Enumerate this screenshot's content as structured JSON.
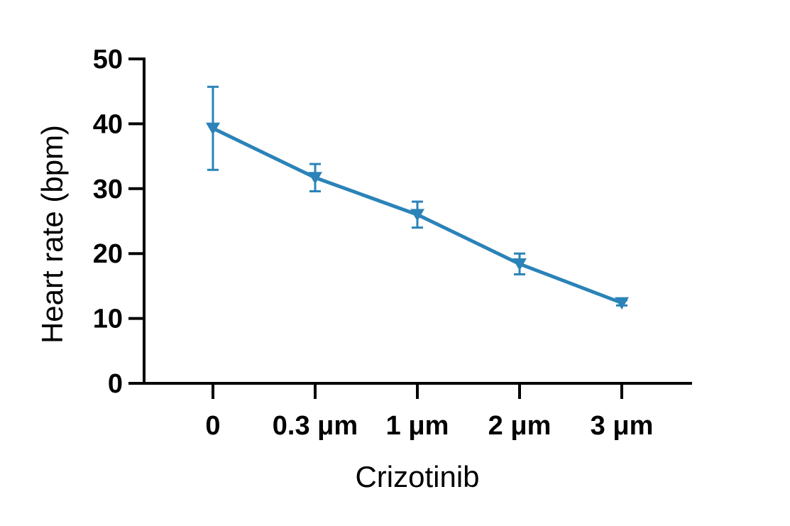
{
  "chart_data": {
    "type": "line",
    "title": "",
    "xlabel": "Crizotinib",
    "ylabel": "Heart rate (bpm)",
    "categories": [
      "0",
      "0.3 μm",
      "1 μm",
      "2 μm",
      "3 μm"
    ],
    "series": [
      {
        "values": [
          39.3,
          31.7,
          26.0,
          18.4,
          12.4
        ],
        "error": [
          6.4,
          2.1,
          2.0,
          1.6,
          0.4
        ],
        "marker": "triangle-down",
        "color": "#2b83b8"
      }
    ],
    "ylim": [
      0,
      50
    ],
    "yticks": [
      "0",
      "10",
      "20",
      "30",
      "40",
      "50"
    ],
    "grid": false,
    "legend": "none"
  }
}
